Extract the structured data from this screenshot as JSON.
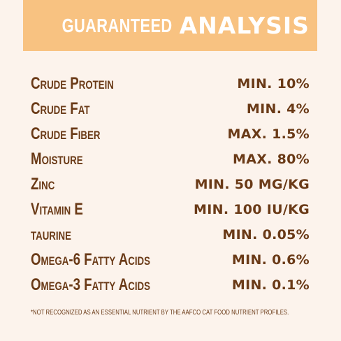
{
  "header": {
    "title_light": "GUARANTEED",
    "title_bold": "ANALYSIS",
    "banner_color": "#f8c281"
  },
  "colors": {
    "background": "#fcf3ec",
    "text": "#6a3a17"
  },
  "rows": [
    {
      "name": "Crude Protein",
      "value": "MIN. 10%"
    },
    {
      "name": "Crude Fat",
      "value": "MIN. 4%"
    },
    {
      "name": "Crude Fiber",
      "value": "MAX. 1.5%"
    },
    {
      "name": "Moisture",
      "value": "MAX. 80%"
    },
    {
      "name": "Zinc",
      "value": "MIN. 50 MG/KG"
    },
    {
      "name": "Vitamin E",
      "value": "MIN. 100 IU/KG"
    },
    {
      "name": "taurine",
      "value": "MIN. 0.05%"
    },
    {
      "name": "Omega-6 Fatty Acids",
      "value": "MIN. 0.6%"
    },
    {
      "name": "Omega-3 Fatty Acids",
      "value": "MIN. 0.1%"
    }
  ],
  "footnote": "*NOT RECOGNIZED AS AN ESSENTIAL NUTRIENT BY THE AAFCO CAT FOOD NUTRIENT PROFILES."
}
